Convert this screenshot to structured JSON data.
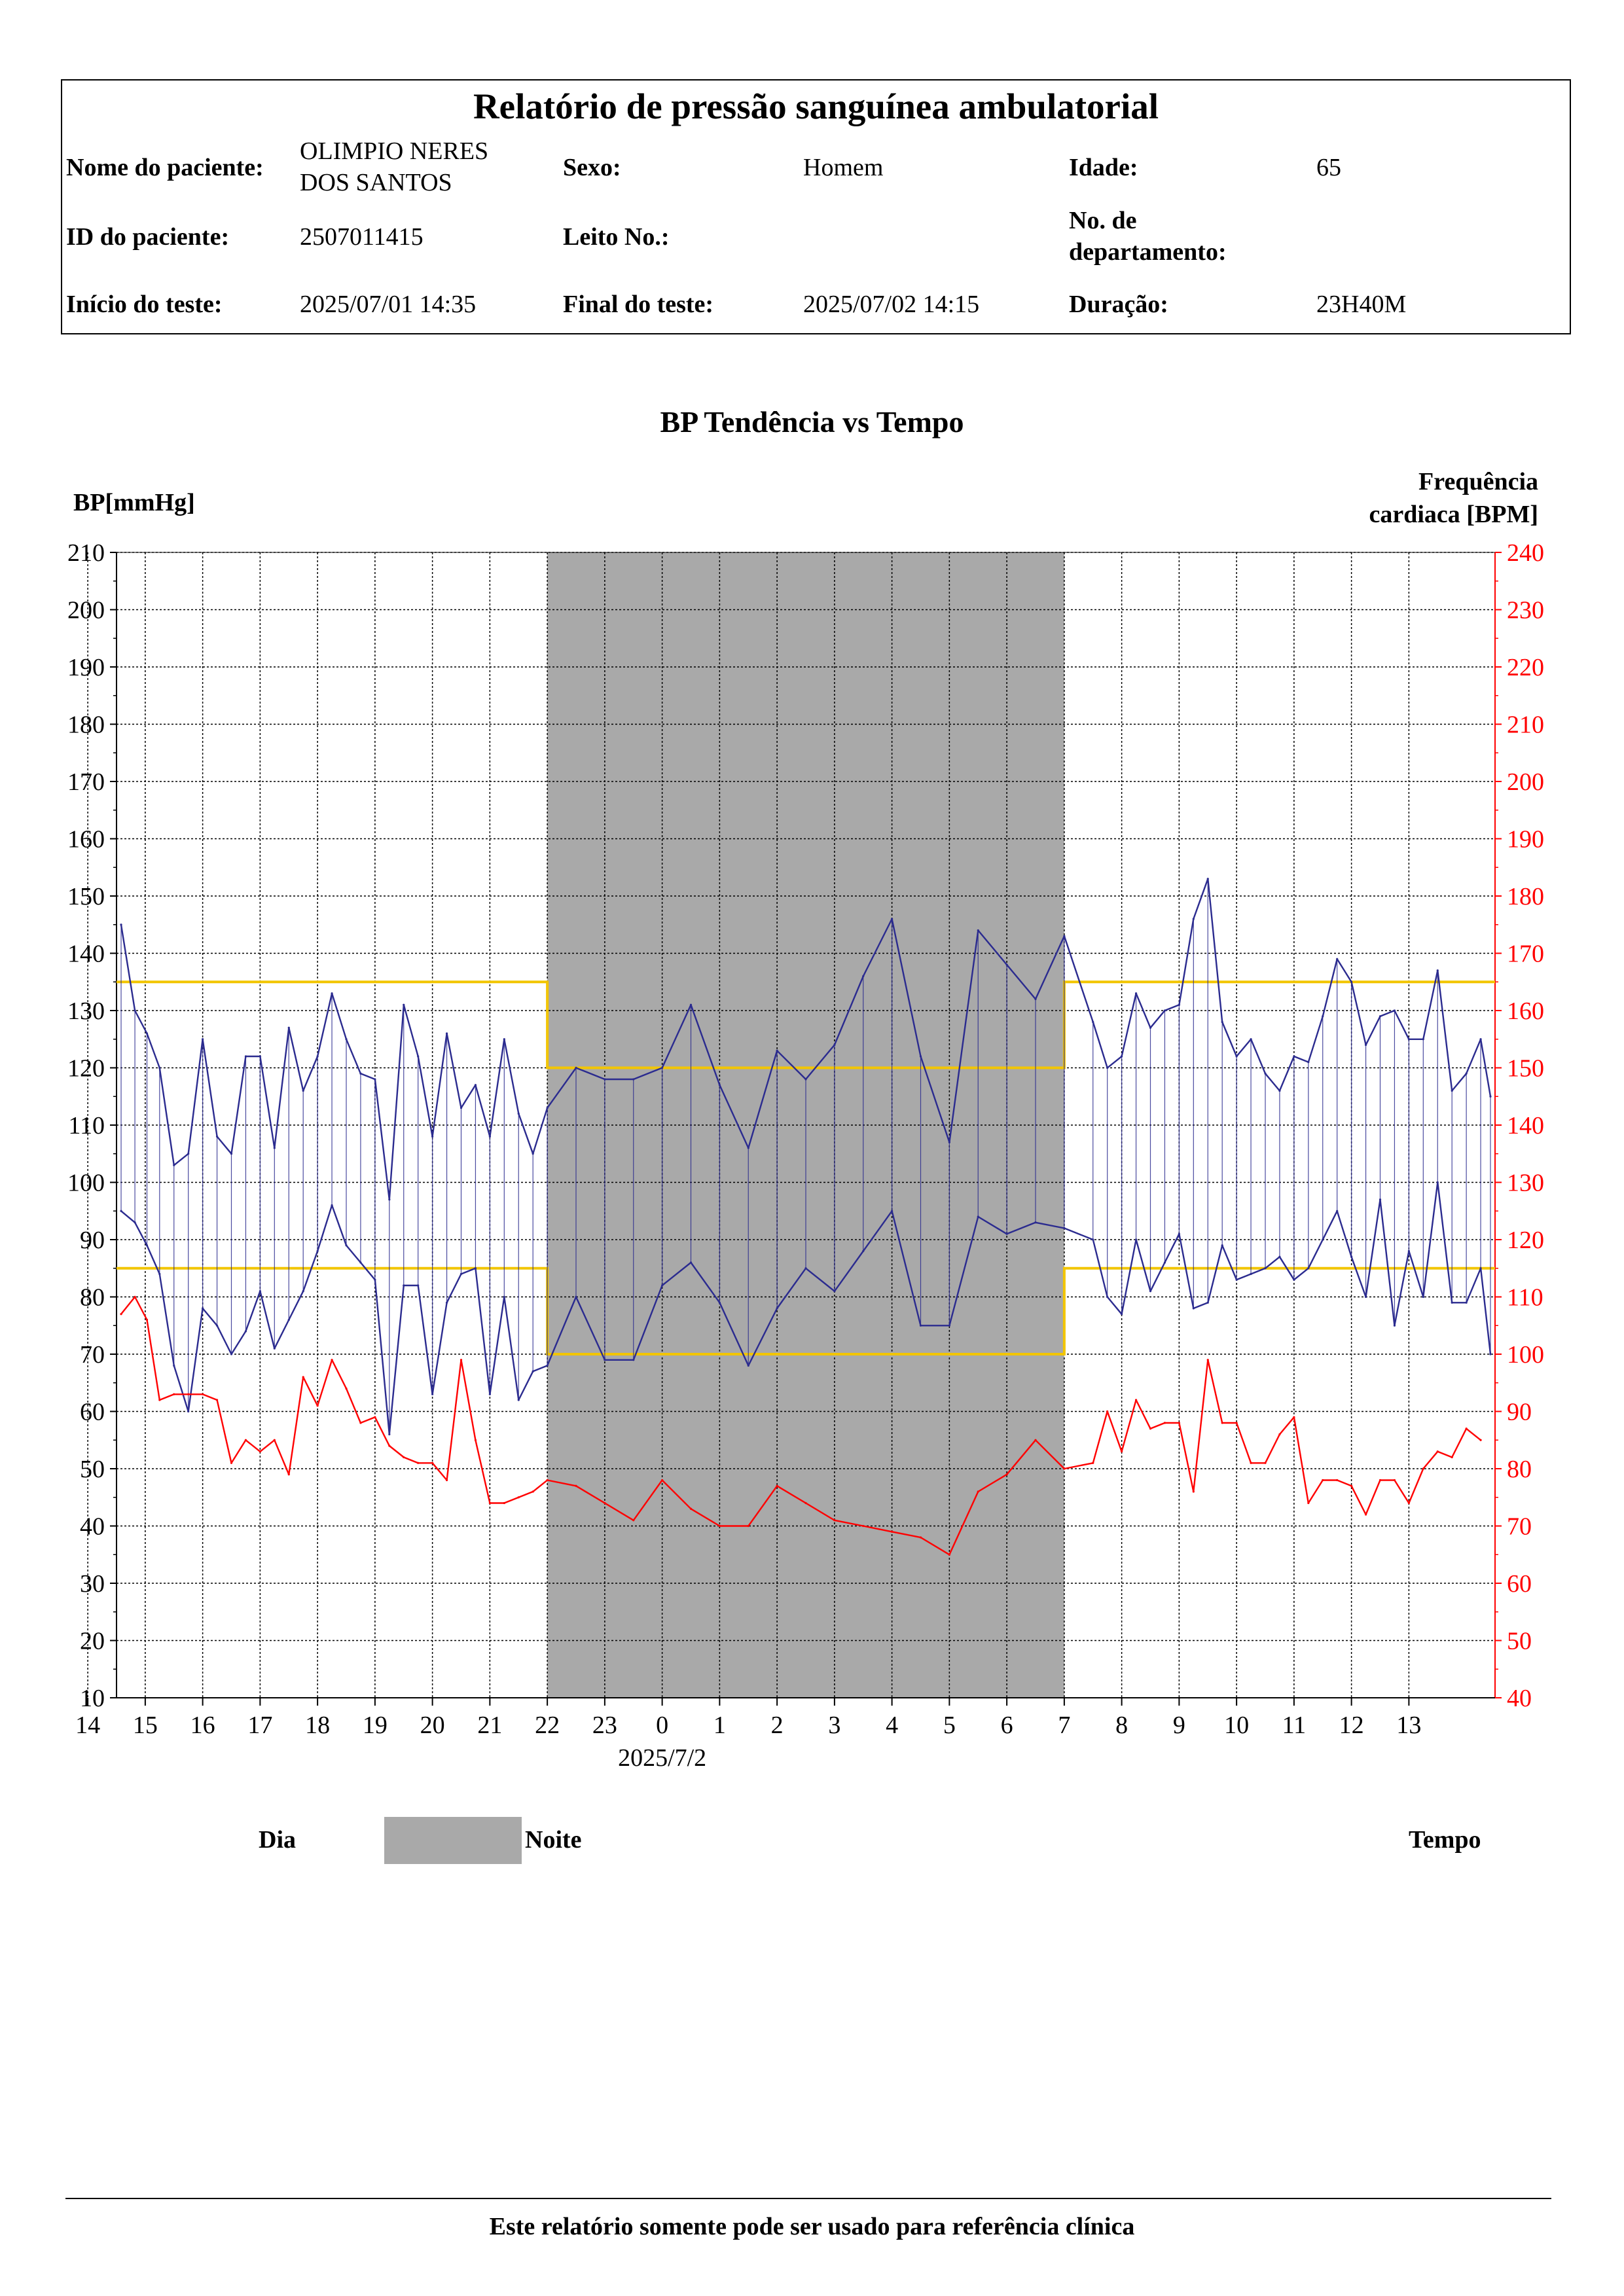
{
  "report": {
    "title": "Relatório de pressão sanguínea ambulatorial",
    "fields": {
      "patient_name_label": "Nome do paciente:",
      "patient_name_line1": "OLIMPIO NERES",
      "patient_name_line2": "DOS SANTOS",
      "sex_label": "Sexo:",
      "sex_value": "Homem",
      "age_label": "Idade:",
      "age_value": "65",
      "patient_id_label": "ID do paciente:",
      "patient_id_value": "2507011415",
      "bed_label": "Leito No.:",
      "bed_value": "",
      "department_label_line1": "No. de",
      "department_label_line2": "departamento:",
      "department_value": "",
      "test_start_label": "Início do teste:",
      "test_start_value": "2025/07/01 14:35",
      "test_end_label": "Final do teste:",
      "test_end_value": "2025/07/02 14:15",
      "duration_label": "Duração:",
      "duration_value": "23H40M"
    }
  },
  "chart_data": {
    "type": "line",
    "title": "BP Tendência vs Tempo",
    "ylabel": "BP[mmHg]",
    "y2label_line1": "Frequência",
    "y2label_line2": "cardiaca [BPM]",
    "ylim": [
      10,
      210
    ],
    "y2lim": [
      40,
      240
    ],
    "yticks": [
      10,
      20,
      30,
      40,
      50,
      60,
      70,
      80,
      90,
      100,
      110,
      120,
      130,
      140,
      150,
      160,
      170,
      180,
      190,
      200,
      210
    ],
    "y2ticks": [
      40,
      50,
      60,
      70,
      80,
      90,
      100,
      110,
      120,
      130,
      140,
      150,
      160,
      170,
      180,
      190,
      200,
      210,
      220,
      230,
      240
    ],
    "xticks": [
      "15",
      "16",
      "17",
      "18",
      "19",
      "20",
      "21",
      "22",
      "23",
      "0",
      "1",
      "2",
      "3",
      "4",
      "5",
      "6",
      "7",
      "8",
      "9",
      "10",
      "11",
      "12",
      "13",
      "14"
    ],
    "date_label": "2025/7/2",
    "night_period": {
      "start": "22",
      "end": "7"
    },
    "thresholds": {
      "day": {
        "systolic": 135,
        "diastolic": 85
      },
      "night": {
        "systolic": 120,
        "diastolic": 70
      }
    },
    "series": [
      {
        "key": "systolic",
        "axis": "bp",
        "color": "#2b2b8f",
        "points": [
          [
            14.58,
            145
          ],
          [
            14.82,
            130
          ],
          [
            15.03,
            126
          ],
          [
            15.25,
            120
          ],
          [
            15.5,
            103
          ],
          [
            15.75,
            105
          ],
          [
            16.0,
            125
          ],
          [
            16.25,
            108
          ],
          [
            16.5,
            105
          ],
          [
            16.75,
            122
          ],
          [
            17.0,
            122
          ],
          [
            17.25,
            106
          ],
          [
            17.5,
            127
          ],
          [
            17.75,
            116
          ],
          [
            18.0,
            122
          ],
          [
            18.25,
            133
          ],
          [
            18.5,
            125
          ],
          [
            18.75,
            119
          ],
          [
            19.0,
            118
          ],
          [
            19.25,
            97
          ],
          [
            19.5,
            131
          ],
          [
            19.75,
            122
          ],
          [
            20.0,
            108
          ],
          [
            20.25,
            126
          ],
          [
            20.5,
            113
          ],
          [
            20.75,
            117
          ],
          [
            21.0,
            108
          ],
          [
            21.25,
            125
          ],
          [
            21.5,
            112
          ],
          [
            21.75,
            105
          ],
          [
            22.0,
            113
          ],
          [
            22.5,
            120
          ],
          [
            23.0,
            118
          ],
          [
            23.5,
            118
          ],
          [
            24.0,
            120
          ],
          [
            24.5,
            131
          ],
          [
            25.0,
            117
          ],
          [
            25.5,
            106
          ],
          [
            26.0,
            123
          ],
          [
            26.5,
            118
          ],
          [
            27.0,
            124
          ],
          [
            27.5,
            136
          ],
          [
            28.0,
            146
          ],
          [
            28.5,
            122
          ],
          [
            29.0,
            107
          ],
          [
            29.5,
            144
          ],
          [
            30.0,
            138
          ],
          [
            30.5,
            132
          ],
          [
            31.0,
            143
          ],
          [
            31.5,
            128
          ],
          [
            31.75,
            120
          ],
          [
            32.0,
            122
          ],
          [
            32.25,
            133
          ],
          [
            32.5,
            127
          ],
          [
            32.75,
            130
          ],
          [
            33.0,
            131
          ],
          [
            33.25,
            146
          ],
          [
            33.5,
            153
          ],
          [
            33.75,
            128
          ],
          [
            34.0,
            122
          ],
          [
            34.25,
            125
          ],
          [
            34.5,
            119
          ],
          [
            34.75,
            116
          ],
          [
            35.0,
            122
          ],
          [
            35.25,
            121
          ],
          [
            35.5,
            129
          ],
          [
            35.75,
            139
          ],
          [
            36.0,
            135
          ],
          [
            36.25,
            124
          ],
          [
            36.5,
            129
          ],
          [
            36.75,
            130
          ],
          [
            37.0,
            125
          ],
          [
            37.25,
            125
          ],
          [
            37.5,
            137
          ],
          [
            37.75,
            116
          ],
          [
            38.0,
            119
          ],
          [
            38.25,
            125
          ],
          [
            38.42,
            115
          ]
        ]
      },
      {
        "key": "diastolic",
        "axis": "bp",
        "color": "#2b2b8f",
        "points": [
          [
            14.58,
            95
          ],
          [
            14.82,
            93
          ],
          [
            15.03,
            89
          ],
          [
            15.25,
            84
          ],
          [
            15.5,
            68
          ],
          [
            15.75,
            60
          ],
          [
            16.0,
            78
          ],
          [
            16.25,
            75
          ],
          [
            16.5,
            70
          ],
          [
            16.75,
            74
          ],
          [
            17.0,
            81
          ],
          [
            17.25,
            71
          ],
          [
            17.5,
            76
          ],
          [
            17.75,
            81
          ],
          [
            18.0,
            88
          ],
          [
            18.25,
            96
          ],
          [
            18.5,
            89
          ],
          [
            18.75,
            86
          ],
          [
            19.0,
            83
          ],
          [
            19.25,
            56
          ],
          [
            19.5,
            82
          ],
          [
            19.75,
            82
          ],
          [
            20.0,
            63
          ],
          [
            20.25,
            79
          ],
          [
            20.5,
            84
          ],
          [
            20.75,
            85
          ],
          [
            21.0,
            63
          ],
          [
            21.25,
            80
          ],
          [
            21.5,
            62
          ],
          [
            21.75,
            67
          ],
          [
            22.0,
            68
          ],
          [
            22.5,
            80
          ],
          [
            23.0,
            69
          ],
          [
            23.5,
            69
          ],
          [
            24.0,
            82
          ],
          [
            24.5,
            86
          ],
          [
            25.0,
            79
          ],
          [
            25.5,
            68
          ],
          [
            26.0,
            78
          ],
          [
            26.5,
            85
          ],
          [
            27.0,
            81
          ],
          [
            27.5,
            88
          ],
          [
            28.0,
            95
          ],
          [
            28.5,
            75
          ],
          [
            29.0,
            75
          ],
          [
            29.5,
            94
          ],
          [
            30.0,
            91
          ],
          [
            30.5,
            93
          ],
          [
            31.0,
            92
          ],
          [
            31.5,
            90
          ],
          [
            31.75,
            80
          ],
          [
            32.0,
            77
          ],
          [
            32.25,
            90
          ],
          [
            32.5,
            81
          ],
          [
            32.75,
            86
          ],
          [
            33.0,
            91
          ],
          [
            33.25,
            78
          ],
          [
            33.5,
            79
          ],
          [
            33.75,
            89
          ],
          [
            34.0,
            83
          ],
          [
            34.25,
            84
          ],
          [
            34.5,
            85
          ],
          [
            34.75,
            87
          ],
          [
            35.0,
            83
          ],
          [
            35.25,
            85
          ],
          [
            35.5,
            90
          ],
          [
            35.75,
            95
          ],
          [
            36.0,
            87
          ],
          [
            36.25,
            80
          ],
          [
            36.5,
            97
          ],
          [
            36.75,
            75
          ],
          [
            37.0,
            88
          ],
          [
            37.25,
            80
          ],
          [
            37.5,
            100
          ],
          [
            37.75,
            79
          ],
          [
            38.0,
            79
          ],
          [
            38.25,
            85
          ],
          [
            38.42,
            70
          ]
        ]
      },
      {
        "key": "heart_rate",
        "axis": "hr",
        "color": "#ff0000",
        "points": [
          [
            14.58,
            107
          ],
          [
            14.82,
            110
          ],
          [
            15.03,
            106
          ],
          [
            15.25,
            92
          ],
          [
            15.5,
            93
          ],
          [
            15.75,
            93
          ],
          [
            16.0,
            93
          ],
          [
            16.25,
            92
          ],
          [
            16.5,
            81
          ],
          [
            16.75,
            85
          ],
          [
            17.0,
            83
          ],
          [
            17.25,
            85
          ],
          [
            17.5,
            79
          ],
          [
            17.75,
            96
          ],
          [
            18.0,
            91
          ],
          [
            18.25,
            99
          ],
          [
            18.5,
            94
          ],
          [
            18.75,
            88
          ],
          [
            19.0,
            89
          ],
          [
            19.25,
            84
          ],
          [
            19.5,
            82
          ],
          [
            19.75,
            81
          ],
          [
            20.0,
            81
          ],
          [
            20.25,
            78
          ],
          [
            20.5,
            99
          ],
          [
            20.75,
            85
          ],
          [
            21.0,
            74
          ],
          [
            21.25,
            74
          ],
          [
            21.5,
            75
          ],
          [
            21.75,
            76
          ],
          [
            22.0,
            78
          ],
          [
            22.5,
            77
          ],
          [
            23.0,
            74
          ],
          [
            23.5,
            71
          ],
          [
            24.0,
            78
          ],
          [
            24.5,
            73
          ],
          [
            25.0,
            70
          ],
          [
            25.5,
            70
          ],
          [
            26.0,
            77
          ],
          [
            26.5,
            74
          ],
          [
            27.0,
            71
          ],
          [
            27.5,
            70
          ],
          [
            28.0,
            69
          ],
          [
            28.5,
            68
          ],
          [
            29.0,
            65
          ],
          [
            29.5,
            76
          ],
          [
            30.0,
            79
          ],
          [
            30.5,
            85
          ],
          [
            31.0,
            80
          ],
          [
            31.5,
            81
          ],
          [
            31.75,
            90
          ],
          [
            32.0,
            83
          ],
          [
            32.25,
            92
          ],
          [
            32.5,
            87
          ],
          [
            32.75,
            88
          ],
          [
            33.0,
            88
          ],
          [
            33.25,
            76
          ],
          [
            33.5,
            99
          ],
          [
            33.75,
            88
          ],
          [
            34.0,
            88
          ],
          [
            34.25,
            81
          ],
          [
            34.5,
            81
          ],
          [
            34.75,
            86
          ],
          [
            35.0,
            89
          ],
          [
            35.25,
            74
          ],
          [
            35.5,
            78
          ],
          [
            35.75,
            78
          ],
          [
            36.0,
            77
          ],
          [
            36.25,
            72
          ],
          [
            36.5,
            78
          ],
          [
            36.75,
            78
          ],
          [
            37.0,
            74
          ],
          [
            37.25,
            80
          ],
          [
            37.5,
            83
          ],
          [
            37.75,
            82
          ],
          [
            38.0,
            87
          ],
          [
            38.25,
            85
          ]
        ]
      }
    ]
  },
  "legend": {
    "day": "Dia",
    "night": "Noite",
    "time": "Tempo"
  },
  "footer": {
    "text": "Este relatório somente pode ser usado para referência clínica"
  }
}
